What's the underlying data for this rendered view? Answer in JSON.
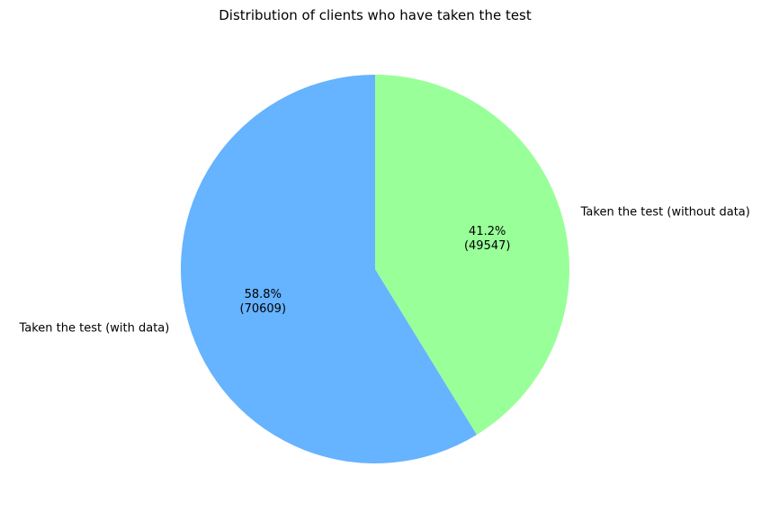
{
  "chart_data": {
    "type": "pie",
    "title": "Distribution of clients who have taken the test",
    "start_angle_deg": 90,
    "direction": "counterclockwise",
    "slices": [
      {
        "label": "Taken the test (with data)",
        "value": 70609,
        "percent_text": "58.8%",
        "value_text": "(70609)",
        "color": "#66b3ff"
      },
      {
        "label": "Taken the test (without data)",
        "value": 49547,
        "percent_text": "41.2%",
        "value_text": "(49547)",
        "color": "#99ff99"
      }
    ]
  }
}
